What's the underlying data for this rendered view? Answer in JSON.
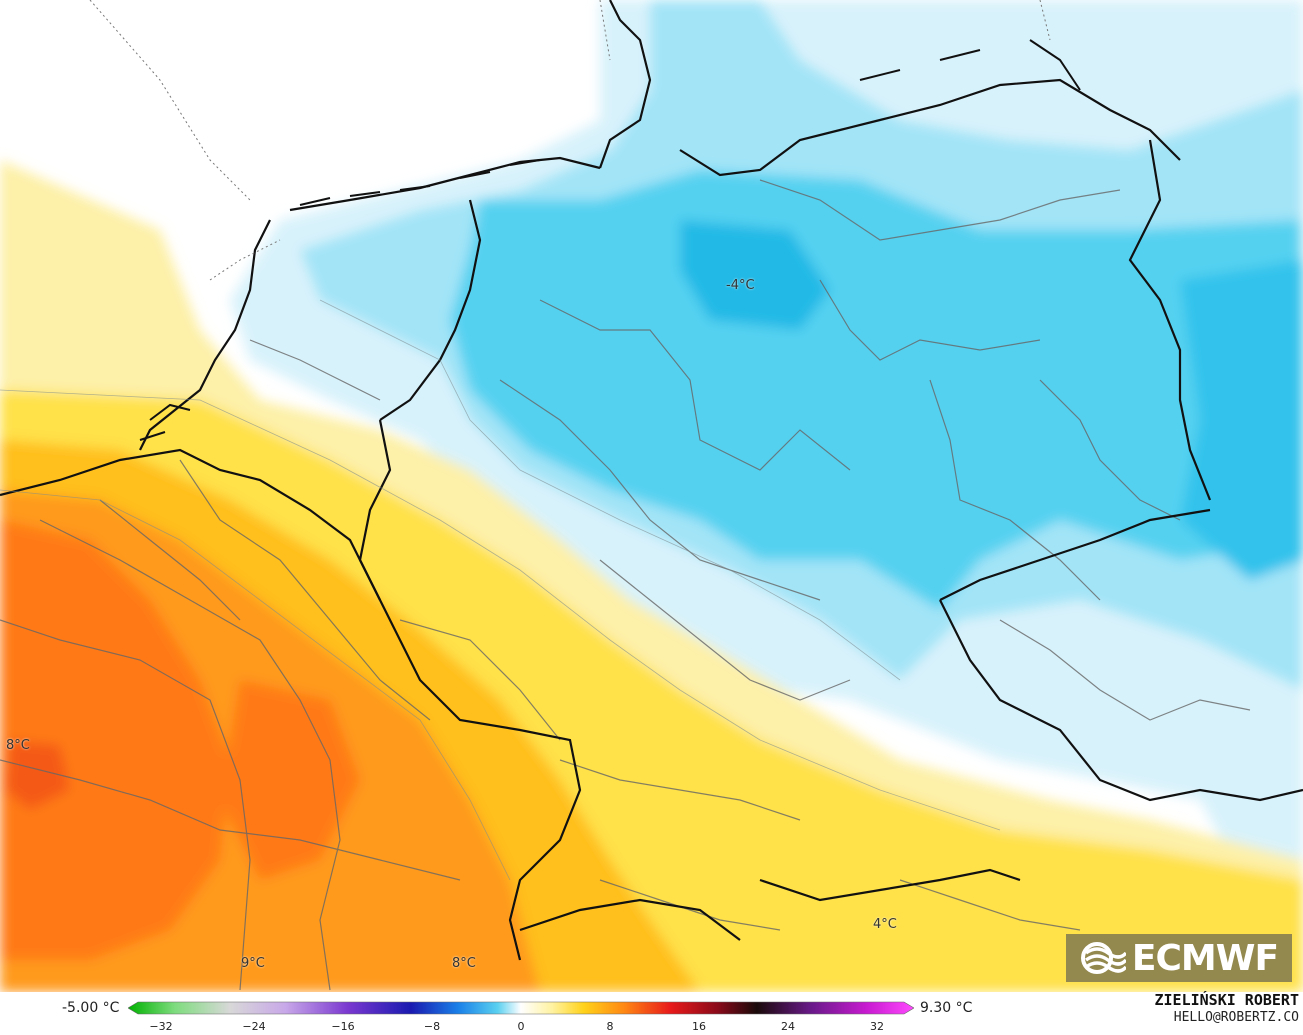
{
  "map": {
    "labels": [
      {
        "id": "label-minus4",
        "text": "-4°C"
      },
      {
        "id": "label-8-west",
        "text": "8°C"
      },
      {
        "id": "label-9-south",
        "text": "9°C"
      },
      {
        "id": "label-8-south",
        "text": "8°C"
      },
      {
        "id": "label-4-southeast",
        "text": "4°C"
      }
    ]
  },
  "logo": {
    "text": "ECMWF"
  },
  "legend": {
    "min_value": "-5.00 °C",
    "max_value": "9.30 °C",
    "ticks": [
      "−32",
      "−24",
      "−16",
      "−8",
      "0",
      "8",
      "16",
      "24",
      "32"
    ]
  },
  "credits": {
    "author": "ZIELIŃSKI ROBERT",
    "contact": "HELLO@ROBERTZ.CO"
  }
}
